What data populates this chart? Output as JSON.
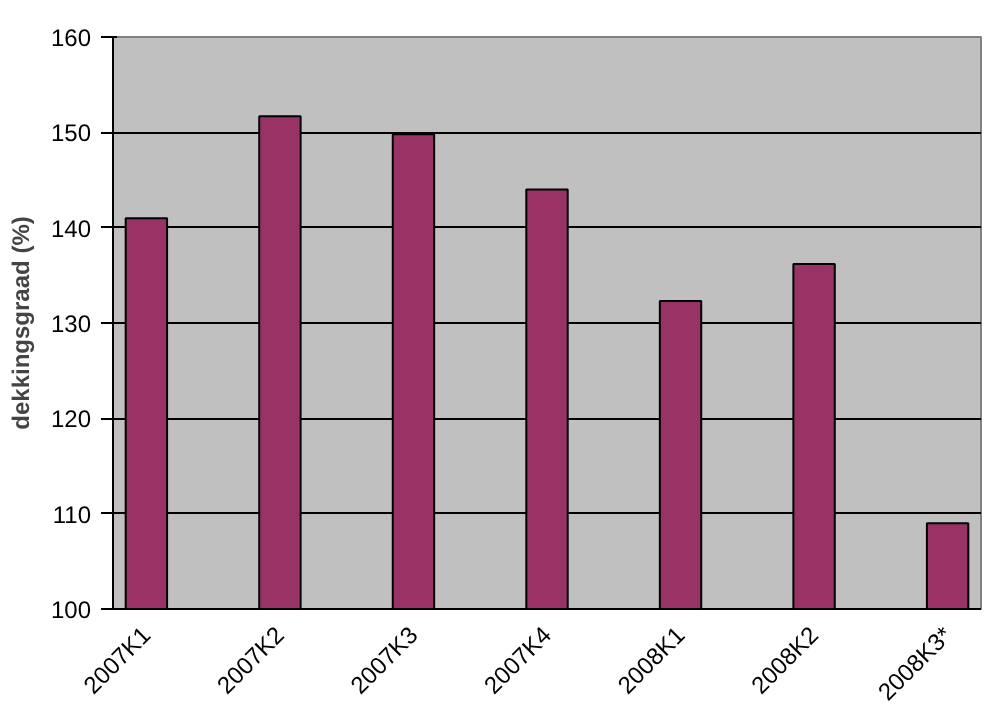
{
  "chart_data": {
    "type": "bar",
    "ylabel": "dekkingsgraad (%)",
    "categories": [
      "2007K1",
      null,
      "2007K2",
      null,
      "2007K3",
      null,
      "2007K4",
      null,
      "2008K1",
      null,
      "2008K2",
      null,
      "2008K3*"
    ],
    "values": [
      141,
      null,
      151.7,
      null,
      149.8,
      null,
      144,
      null,
      132.3,
      null,
      136.2,
      null,
      109
    ],
    "color": "#993366",
    "ylim": [
      100,
      160
    ],
    "yticks": [
      100,
      110,
      120,
      130,
      140,
      150,
      160
    ],
    "grid": "y"
  }
}
